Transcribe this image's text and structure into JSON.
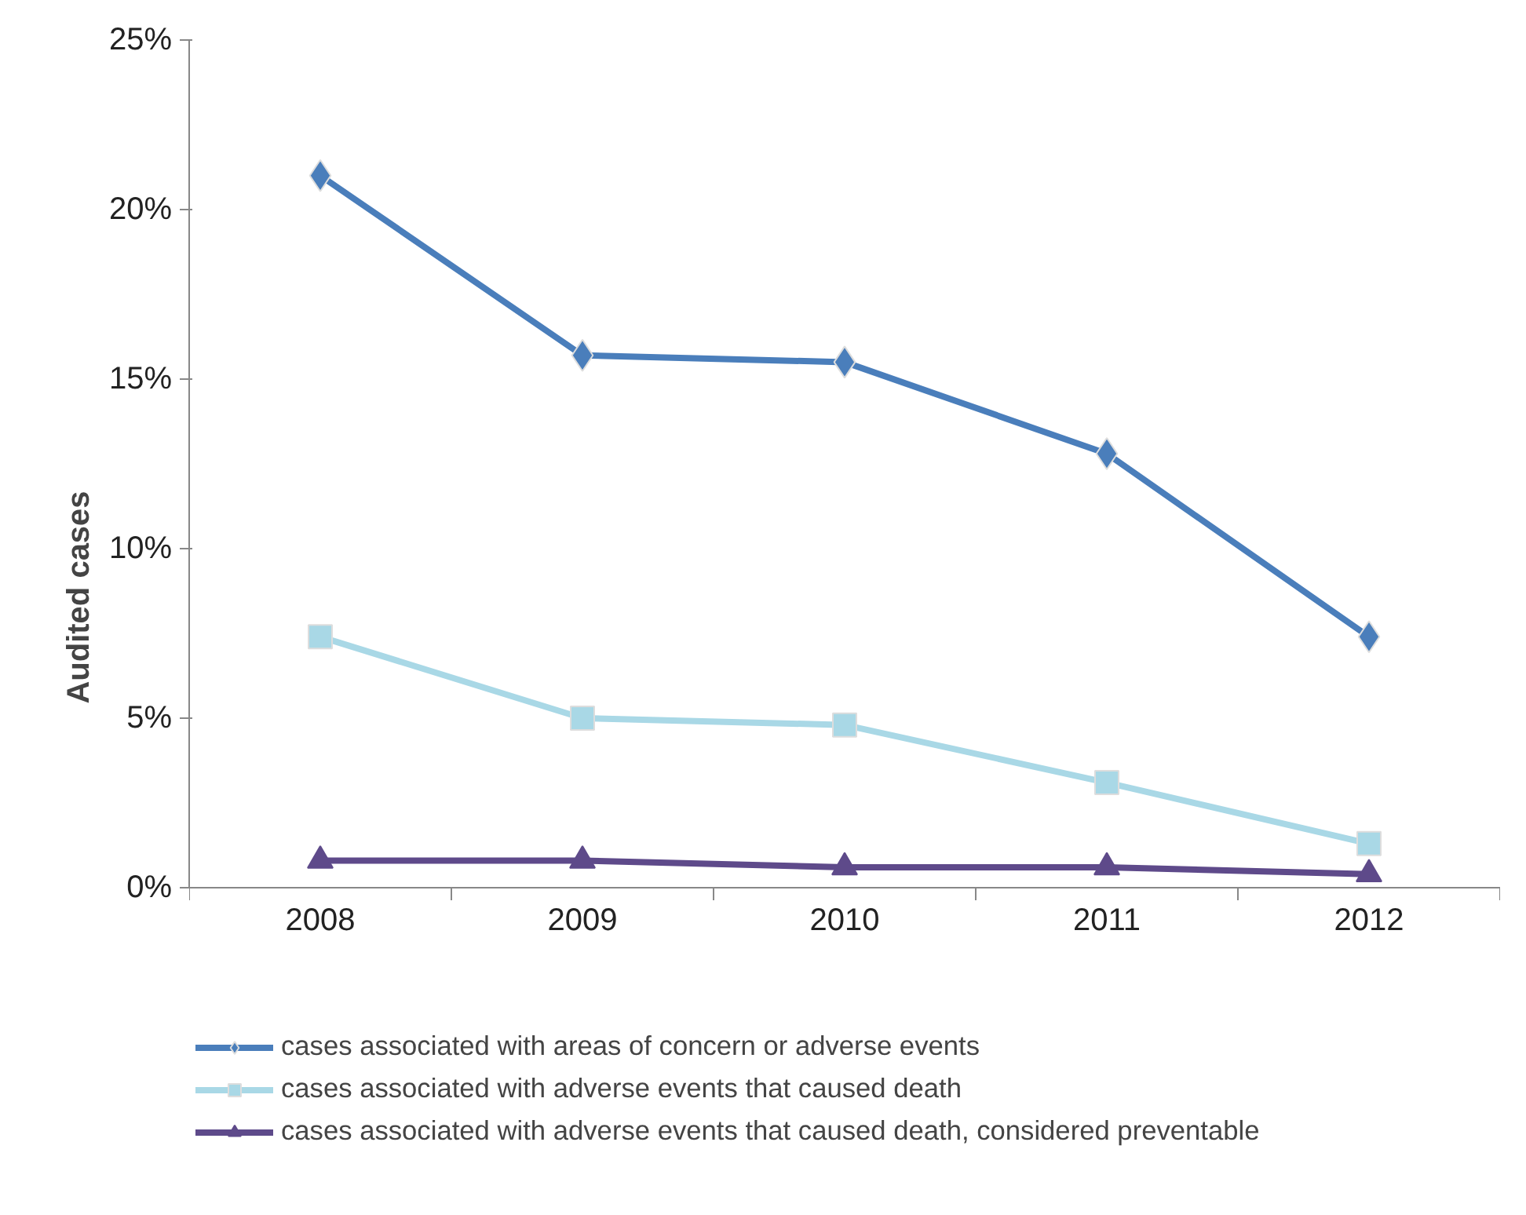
{
  "chart_data": {
    "type": "line",
    "ylabel": "Audited cases",
    "categories": [
      "2008",
      "2009",
      "2010",
      "2011",
      "2012"
    ],
    "series": [
      {
        "name": "cases associated with areas of concern or adverse events",
        "color": "#4a7ebb",
        "marker": "diamond",
        "values": [
          21.0,
          15.7,
          15.5,
          12.8,
          7.4
        ]
      },
      {
        "name": "cases associated with adverse events that caused death",
        "color": "#a9d8e6",
        "marker": "square",
        "values": [
          7.4,
          5.0,
          4.8,
          3.1,
          1.3
        ]
      },
      {
        "name": "cases associated with adverse events that caused death, considered preventable",
        "color": "#5e4a8a",
        "marker": "triangle",
        "values": [
          0.8,
          0.8,
          0.6,
          0.6,
          0.4
        ]
      }
    ],
    "ylim": [
      0,
      25
    ],
    "yticks": [
      {
        "value": 0,
        "label": "0%"
      },
      {
        "value": 5,
        "label": "5%"
      },
      {
        "value": 10,
        "label": "10%"
      },
      {
        "value": 15,
        "label": "15%"
      },
      {
        "value": 20,
        "label": "20%"
      },
      {
        "value": 25,
        "label": "25%"
      }
    ],
    "grid": false,
    "legend": "bottom",
    "line_style": "solid"
  }
}
